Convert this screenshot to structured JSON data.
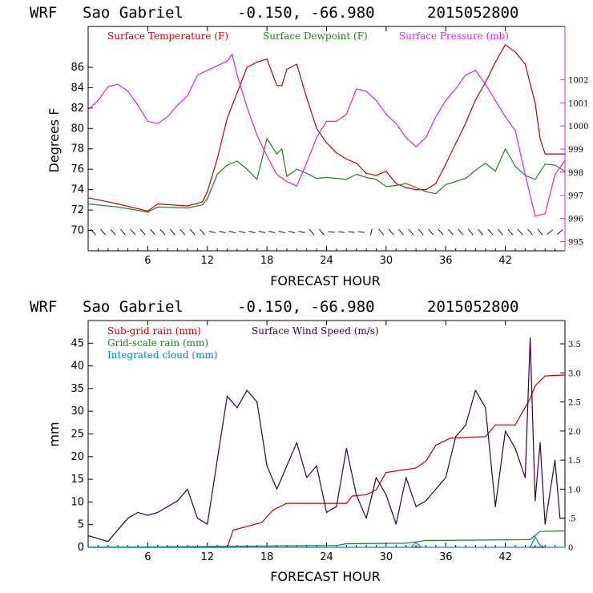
{
  "chart_data": [
    {
      "type": "line",
      "header": {
        "model": "WRF",
        "location": "Sao Gabriel",
        "coords": "-0.150, -66.980",
        "date": "2015052800"
      },
      "xlabel": "FORECAST HOUR",
      "ylabel": "Degrees F",
      "xlim": [
        0,
        48
      ],
      "ylim": [
        68,
        90
      ],
      "y2lim": [
        994.6,
        1004.3
      ],
      "x_ticks": [
        "6",
        "12",
        "18",
        "24",
        "30",
        "36",
        "42"
      ],
      "y_ticks": [
        "70",
        "72",
        "74",
        "76",
        "78",
        "80",
        "82",
        "84",
        "86"
      ],
      "y2_ticks": [
        "995",
        "996",
        "997",
        "998",
        "999",
        "1000",
        "1001",
        "1002"
      ],
      "colors": {
        "temp": "#c00000",
        "dew": "#208020",
        "press": "#e020e0",
        "wind": "#300040"
      },
      "series": [
        {
          "name": "Surface Temperature (F)",
          "axis": "left",
          "x": [
            0,
            3,
            6,
            7,
            10,
            11.5,
            12,
            13,
            14,
            15,
            16,
            17,
            18,
            19,
            19.5,
            20,
            21,
            22,
            23,
            24,
            25,
            26,
            27,
            28,
            29,
            30,
            31,
            32,
            33,
            34,
            35,
            36,
            37,
            38,
            39,
            40,
            41,
            42,
            43,
            44,
            45,
            45.5,
            46,
            47,
            48
          ],
          "values": [
            73.2,
            72.6,
            71.9,
            72.6,
            72.4,
            72.8,
            73.8,
            77,
            81,
            83.5,
            86,
            86.5,
            86.8,
            84.2,
            84.2,
            85.8,
            86.3,
            83,
            80,
            78.6,
            77.6,
            77,
            76.6,
            75.6,
            75.4,
            75.8,
            74.6,
            74.2,
            74,
            74,
            74.6,
            76.5,
            78.5,
            80.5,
            82.8,
            84.5,
            86.5,
            88.2,
            87.5,
            86.3,
            82.5,
            79,
            77.5,
            77.5,
            77.5
          ]
        },
        {
          "name": "Surface Dewpoint (F)",
          "axis": "left",
          "x": [
            0,
            3,
            6,
            7,
            10,
            11.5,
            12,
            13,
            14,
            15,
            16,
            17,
            18,
            19,
            19.5,
            20,
            21,
            22,
            23,
            24,
            25,
            26,
            27,
            28,
            29,
            30,
            31,
            32,
            33,
            34,
            35,
            36,
            37,
            38,
            39,
            40,
            41,
            42,
            43,
            44,
            45,
            46,
            47,
            48
          ],
          "values": [
            72.6,
            72.3,
            71.8,
            72.3,
            72.2,
            72.5,
            73.1,
            75.5,
            76.4,
            76.8,
            76,
            75,
            79,
            77.5,
            78,
            75.3,
            76,
            75.6,
            75.1,
            75.2,
            75.1,
            75,
            75.5,
            75.2,
            75,
            74.3,
            74.4,
            74.6,
            74.2,
            73.8,
            73.6,
            74.5,
            74.8,
            75.1,
            75.9,
            76.6,
            75.8,
            78,
            76.3,
            75.4,
            75,
            76.5,
            76.4,
            75.8
          ]
        },
        {
          "name": "Surface Pressure (mb)",
          "axis": "right",
          "x": [
            0,
            1,
            2,
            3,
            4,
            5,
            6,
            7,
            8,
            9,
            10,
            11,
            12,
            13,
            14,
            14.5,
            15,
            16,
            17,
            18,
            19,
            20,
            21,
            22,
            23,
            24,
            25,
            26,
            27,
            28,
            29,
            30,
            31,
            32,
            33,
            34,
            35,
            36,
            37,
            38,
            39,
            40,
            41,
            42,
            43,
            44,
            45,
            46,
            47,
            48
          ],
          "values": [
            1000.7,
            1001.1,
            1001.7,
            1001.8,
            1001.5,
            1000.9,
            1000.2,
            1000.1,
            1000.4,
            1000.9,
            1001.3,
            1002.2,
            1002.4,
            1002.6,
            1002.8,
            1003.1,
            1002.2,
            1000.8,
            999.6,
            998.7,
            997.9,
            997.6,
            997.4,
            998.4,
            999.5,
            1000.2,
            1000.2,
            1000.5,
            1001.6,
            1001.5,
            1001.1,
            1000.5,
            1000.1,
            999.5,
            999.1,
            999.5,
            1000.4,
            1001.1,
            1001.6,
            1002.2,
            1002.4,
            1001.8,
            1001.1,
            1000.4,
            999.8,
            997.9,
            996.1,
            996.2,
            997.9,
            998.5
          ]
        }
      ],
      "wind_barbs_y": 70
    },
    {
      "type": "line",
      "header": {
        "model": "WRF",
        "location": "Sao Gabriel",
        "coords": "-0.150, -66.980",
        "date": "2015052800"
      },
      "xlabel": "FORECAST HOUR",
      "ylabel": "mm",
      "xlim": [
        0,
        48
      ],
      "ylim": [
        0,
        50
      ],
      "y2lim": [
        0,
        3.9
      ],
      "x_ticks": [
        "6",
        "12",
        "18",
        "24",
        "30",
        "36",
        "42"
      ],
      "y_ticks": [
        "0",
        "5",
        "10",
        "15",
        "20",
        "25",
        "30",
        "35",
        "40",
        "45"
      ],
      "y2_ticks": [
        "0",
        ".5",
        "1.0",
        "1.5",
        "2.0",
        "2.5",
        "3.0",
        "3.5"
      ],
      "colors": {
        "subgrid": "#c00000",
        "grid": "#208020",
        "cloud": "#0080e0",
        "wind": "#300040"
      },
      "series": [
        {
          "name": "Sub-grid rain (mm)",
          "axis": "left",
          "x": [
            0,
            14,
            14.6,
            17.5,
            18.6,
            20,
            26,
            26.6,
            28,
            29,
            30,
            33,
            34,
            35,
            36.5,
            40,
            41,
            43,
            44.5,
            45,
            46,
            48
          ],
          "values": [
            0,
            0,
            3.8,
            5.5,
            8.2,
            9.7,
            9.7,
            11.3,
            11.6,
            12.7,
            16.5,
            17.5,
            19,
            22.5,
            24.1,
            24.4,
            27,
            27,
            32.8,
            35.6,
            37.8,
            38
          ]
        },
        {
          "name": "Grid-scale rain (mm)",
          "axis": "left",
          "x": [
            0,
            12,
            25,
            26,
            32,
            33,
            34,
            40,
            44.5,
            45.5,
            48
          ],
          "values": [
            0,
            0.2,
            0.4,
            0.8,
            0.9,
            1.2,
            1.5,
            1.6,
            1.7,
            3.5,
            3.6
          ]
        },
        {
          "name": "Integrated cloud (mm)",
          "axis": "left",
          "x": [
            0,
            32.5,
            33,
            33.5,
            44.5,
            45,
            45.5,
            46,
            48
          ],
          "values": [
            0,
            0,
            1.1,
            0,
            0,
            2.3,
            0.4,
            0,
            0
          ]
        },
        {
          "name": "Surface Wind Speed (m/s)",
          "axis": "right",
          "x": [
            0,
            1,
            2,
            3,
            4,
            5,
            6,
            7,
            8,
            9,
            10,
            11,
            12,
            13,
            14,
            15,
            16,
            17,
            18,
            19,
            20,
            21,
            22,
            23,
            24,
            25,
            26,
            27,
            28,
            29,
            30,
            31,
            32,
            33,
            34,
            35,
            36,
            37,
            38,
            39,
            40,
            41,
            42,
            43,
            44,
            44.5,
            45,
            45.5,
            46,
            47,
            47.5,
            48
          ],
          "values": [
            0.2,
            0.15,
            0.1,
            0.3,
            0.5,
            0.6,
            0.55,
            0.6,
            0.7,
            0.8,
            1.0,
            0.5,
            0.4,
            1.5,
            2.6,
            2.4,
            2.7,
            2.5,
            1.4,
            1.0,
            1.4,
            1.8,
            1.2,
            1.4,
            0.6,
            0.7,
            1.7,
            0.9,
            0.5,
            1.2,
            0.9,
            0.4,
            1.2,
            0.7,
            0.8,
            1.0,
            1.2,
            1.9,
            2.1,
            2.7,
            2.4,
            0.7,
            2.0,
            1.7,
            1.2,
            3.6,
            0.8,
            1.8,
            0.4,
            1.5,
            0.5,
            0.5
          ]
        }
      ]
    }
  ]
}
